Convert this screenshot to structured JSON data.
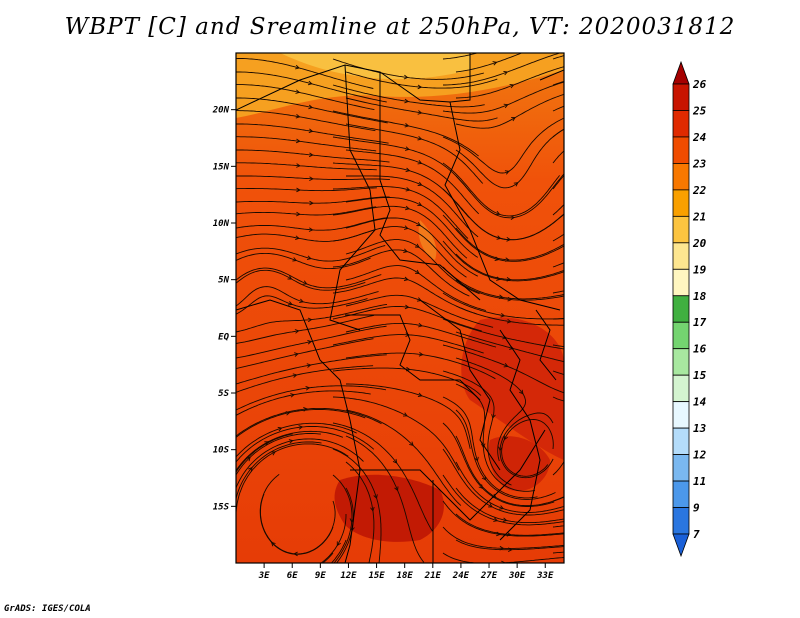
{
  "title": "WBPT [C] and Sreamline at 250hPa, VT: 2020031812",
  "credit": "GrADS: IGES/COLA",
  "map": {
    "lat_ticks": [
      "20N",
      "15N",
      "10N",
      "5N",
      "EQ",
      "5S",
      "10S",
      "15S"
    ],
    "lon_ticks": [
      "3E",
      "6E",
      "9E",
      "12E",
      "15E",
      "18E",
      "21E",
      "24E",
      "27E",
      "30E",
      "33E"
    ],
    "lon_range": [
      0,
      35
    ],
    "lat_range": [
      -20,
      25
    ]
  },
  "colorbar": {
    "labels": [
      "26",
      "25",
      "24",
      "23",
      "22",
      "21",
      "20",
      "19",
      "18",
      "17",
      "16",
      "15",
      "14",
      "13",
      "12",
      "11",
      "9",
      "7"
    ],
    "colors": [
      "#a50000",
      "#c81400",
      "#e02a00",
      "#f04c00",
      "#f87800",
      "#f9a000",
      "#fcc440",
      "#fde690",
      "#fff6c0",
      "#40b040",
      "#74d470",
      "#a8e8a0",
      "#d4f4d0",
      "#e8f8ff",
      "#b4dcfa",
      "#7ab8f0",
      "#4c98ea",
      "#2a76e0",
      "#1a60d8"
    ]
  }
}
